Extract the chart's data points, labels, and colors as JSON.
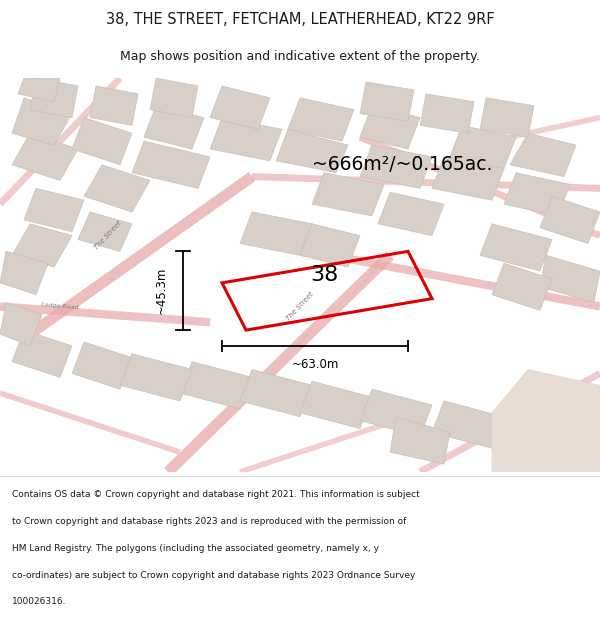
{
  "title_line1": "38, THE STREET, FETCHAM, LEATHERHEAD, KT22 9RF",
  "title_line2": "Map shows position and indicative extent of the property.",
  "area_text": "~666m²/~0.165ac.",
  "width_label": "~63.0m",
  "height_label": "~45.3m",
  "number_label": "38",
  "footer_text": "Contains OS data © Crown copyright and database right 2021. This information is subject to Crown copyright and database rights 2023 and is reproduced with the permission of HM Land Registry. The polygons (including the associated geometry, namely x, y co-ordinates) are subject to Crown copyright and database rights 2023 Ordnance Survey 100026316.",
  "map_bg": "#f0ebe5",
  "road_color": "#e8a8a8",
  "block_fill": "#d8d0c8",
  "block_edge": "#c8c0b8",
  "highlight_color": "#dd0000",
  "text_color": "#1a1a1a",
  "footer_bg": "#ffffff",
  "beige_area": "#e8ddd5"
}
